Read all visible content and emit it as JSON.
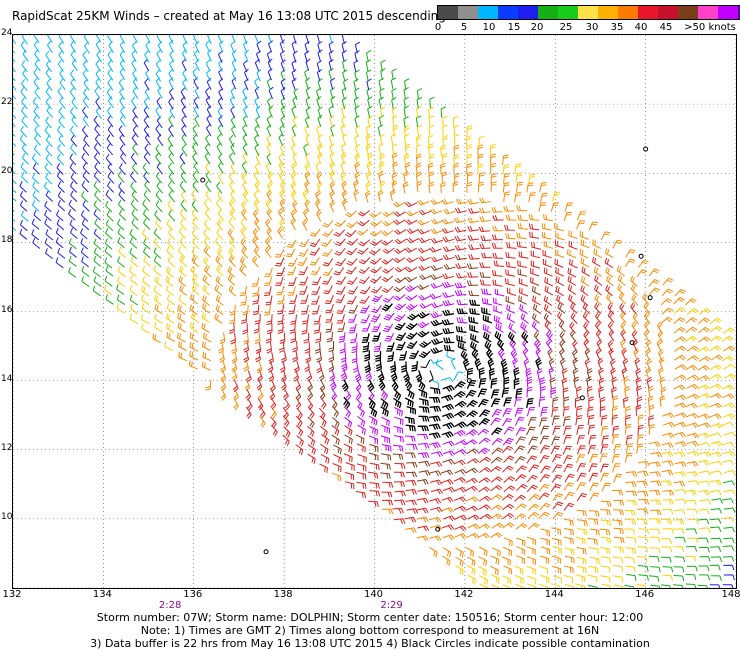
{
  "title": "RapidScat 25KM Winds – created at May 16 13:08 UTC 2015 descending",
  "colorbar": {
    "colors": [
      "#4a4a4a",
      "#8f8f8f",
      "#00b7ff",
      "#0a3cff",
      "#1e1ef0",
      "#16b016",
      "#19cc19",
      "#ffe24a",
      "#ffb000",
      "#ff7a00",
      "#e8162a",
      "#c7102a",
      "#7a3f1a",
      "#ff40c8",
      "#c000ff",
      "#4a0c88"
    ],
    "labels": [
      "0",
      "5",
      "10",
      "15",
      "20",
      "25",
      "30",
      "35",
      "40",
      "45",
      ">50 knots"
    ]
  },
  "map": {
    "lon_min": 132,
    "lon_max": 148,
    "lat_min": 8,
    "lat_max": 24,
    "x_ticks": [
      "132",
      "134",
      "136",
      "138",
      "140",
      "142",
      "144",
      "146",
      "148"
    ],
    "y_ticks": [
      "10",
      "12",
      "14",
      "16",
      "18",
      "20",
      "22",
      "24"
    ],
    "time_labels": [
      {
        "text": "2:28",
        "lon": 135.5
      },
      {
        "text": "2:29",
        "lon": 140.4
      }
    ],
    "storm_center": {
      "lon": 141.5,
      "lat": 14.3
    },
    "wind_colors": {
      "calm": "#000000",
      "c10": "#00b7ff",
      "c15": "#1e1ef0",
      "c20": "#16b016",
      "c25": "#ffd000",
      "c30": "#ff8a00",
      "c35": "#e0201e",
      "c40": "#8a3a1a",
      "c45": "#c000ff",
      "c50": "#000000"
    }
  },
  "footer": {
    "line1": "Storm number: 07W;  Storm name: DOLPHIN;  Storm center date: 150516;  Storm center hour: 12:00",
    "line2": "Note: 1) Times are GMT  2) Times along bottom correspond to measurement at 16N",
    "line3": "3) Data buffer is 22 hrs from May 16 13:08 UTC 2015   4) Black Circles indicate possible contamination"
  }
}
